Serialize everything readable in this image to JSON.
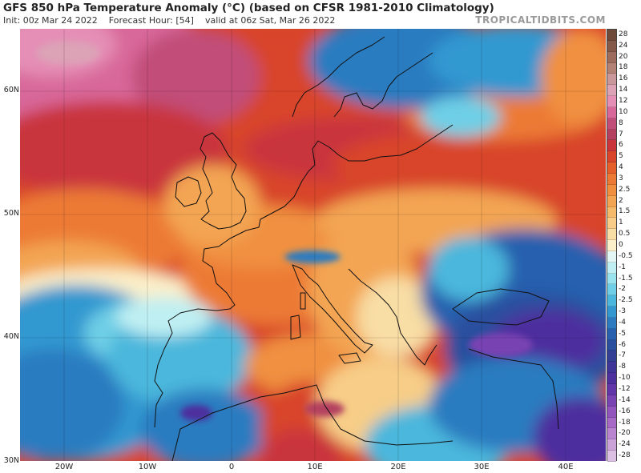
{
  "header": {
    "title": "GFS 850 hPa Temperature Anomaly (°C) (based on CFSR 1981-2010 Climatology)",
    "init": "Init: 00z Mar 24 2022",
    "forecast": "Forecast Hour: [54]",
    "valid": "valid at 06z Sat, Mar 26 2022",
    "brand": "TROPICALTIDBITS.COM"
  },
  "axes": {
    "lat_labels": [
      "60N",
      "50N",
      "40N",
      "30N"
    ],
    "lon_labels": [
      "20W",
      "10W",
      "0",
      "10E",
      "20E",
      "30E",
      "40E"
    ]
  },
  "colorbar": {
    "labels": [
      "28",
      "24",
      "20",
      "18",
      "16",
      "14",
      "12",
      "10",
      "8",
      "7",
      "6",
      "5",
      "4",
      "3",
      "2.5",
      "2",
      "1.5",
      "1",
      "0.5",
      "0",
      "-0.5",
      "-1",
      "-1.5",
      "-2",
      "-2.5",
      "-3",
      "-4",
      "-5",
      "-6",
      "-7",
      "-8",
      "-10",
      "-12",
      "-14",
      "-16",
      "-18",
      "-20",
      "-24",
      "-28"
    ],
    "colors": [
      "#6e4a3a",
      "#85594a",
      "#9c6d5e",
      "#b38276",
      "#c9989a",
      "#dca2b6",
      "#e58fb6",
      "#d8679a",
      "#c14e78",
      "#b3405f",
      "#c9363c",
      "#d8452a",
      "#e45f2a",
      "#ec7a34",
      "#f0903f",
      "#f3a552",
      "#f5ba6a",
      "#f7cd87",
      "#f8dda4",
      "#fbefc9",
      "#e2f6f6",
      "#bfeff2",
      "#98e3ee",
      "#6ecfe6",
      "#4bb7dc",
      "#3398d0",
      "#2c7bc0",
      "#2760ae",
      "#2a4f9e",
      "#333f94",
      "#3f3497",
      "#4e2f9e",
      "#6236a8",
      "#7943b3",
      "#9155bd",
      "#a66ac6",
      "#b985cf",
      "#cba3d9",
      "#dcc0e3"
    ]
  }
}
